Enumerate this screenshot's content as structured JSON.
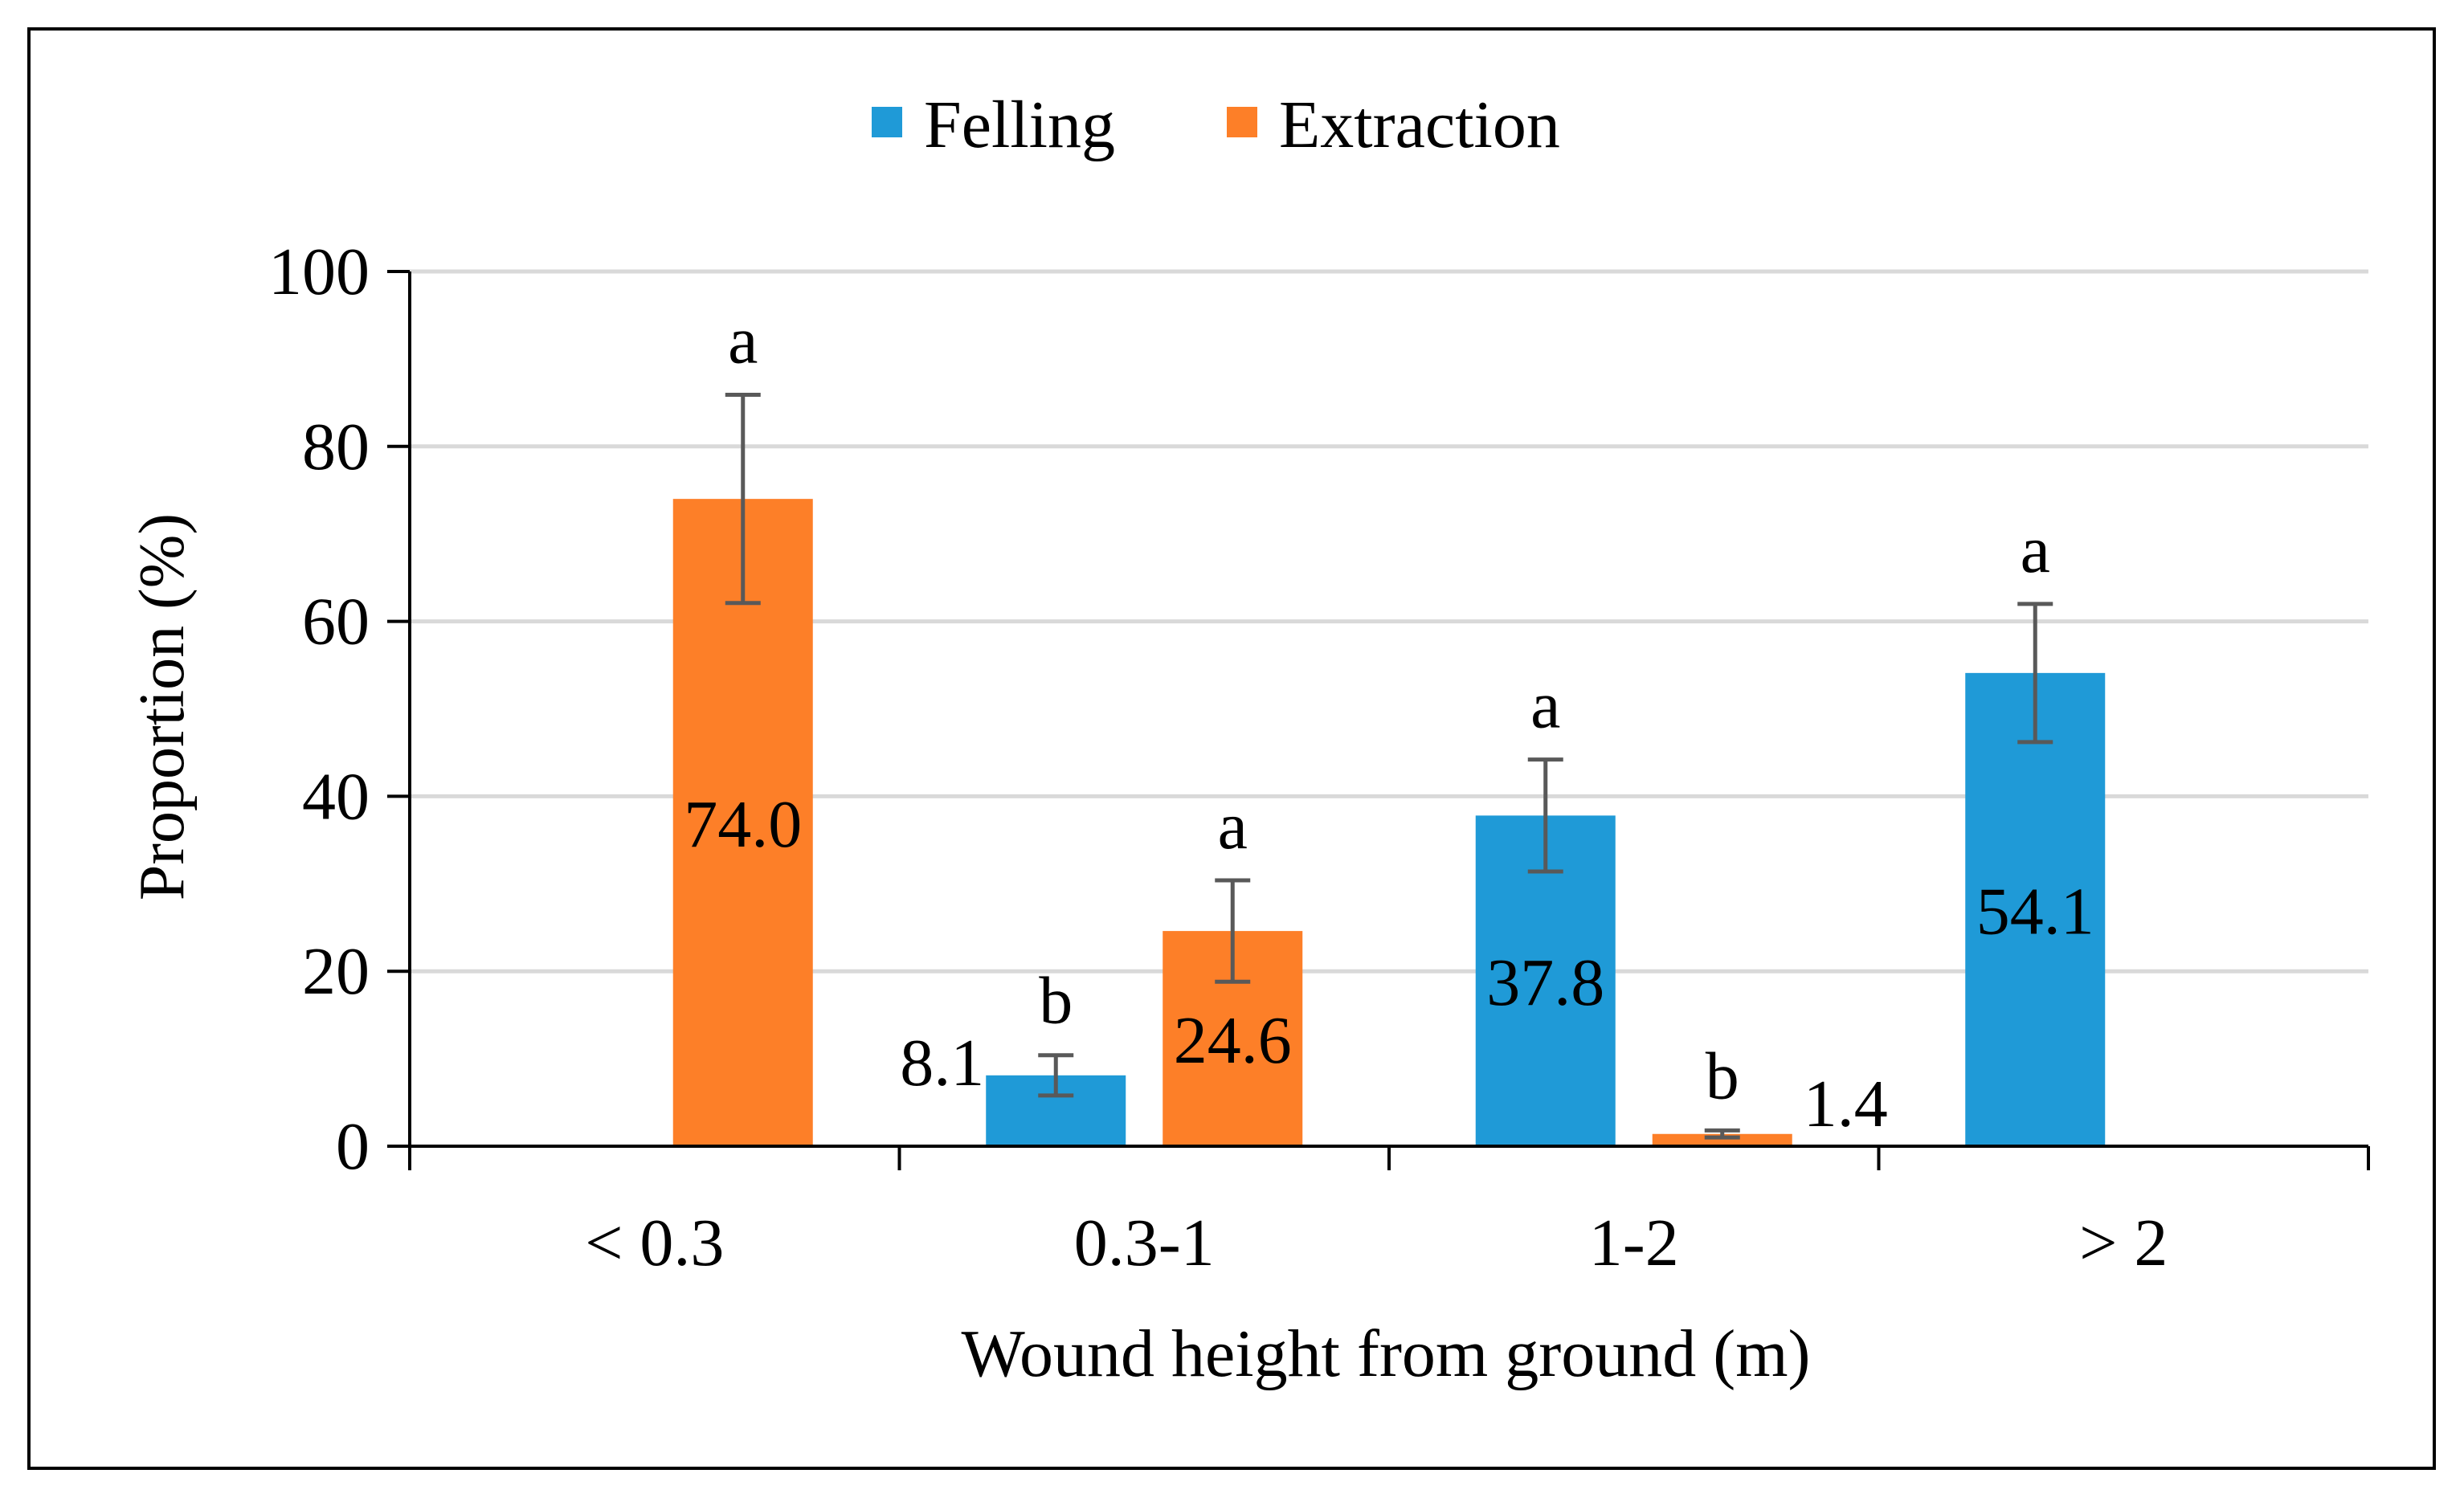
{
  "chart_data": {
    "type": "bar",
    "title": "",
    "xlabel": "Wound height from ground (m)",
    "ylabel": "Proportion (%)",
    "ylim": [
      0,
      100
    ],
    "yticks": [
      0,
      20,
      40,
      60,
      80,
      100
    ],
    "categories": [
      "< 0.3",
      "0.3-1",
      "1-2",
      "> 2"
    ],
    "grid": true,
    "legend_position": "top",
    "series": [
      {
        "name": "Felling",
        "color": "#1f9ad7",
        "values": [
          null,
          8.1,
          37.8,
          54.1
        ],
        "value_labels": [
          "",
          "8.1",
          "37.8",
          "54.1"
        ],
        "errors": [
          null,
          2.3,
          6.4,
          7.9
        ],
        "letters": [
          "",
          "b",
          "a",
          "a"
        ]
      },
      {
        "name": "Extraction",
        "color": "#fd7f28",
        "values": [
          74.0,
          24.6,
          1.4,
          null
        ],
        "value_labels": [
          "74.0",
          "24.6",
          "1.4",
          ""
        ],
        "errors": [
          11.9,
          5.8,
          0.4,
          null
        ],
        "letters": [
          "a",
          "a",
          "b",
          ""
        ]
      }
    ]
  },
  "colors": {
    "axis": "#000000",
    "grid": "#d9d9d9",
    "error_bar": "#595959"
  }
}
